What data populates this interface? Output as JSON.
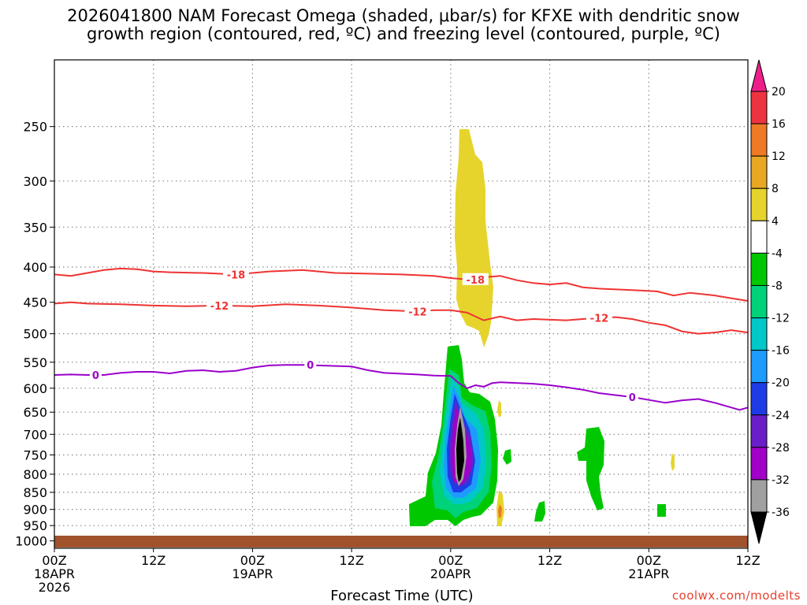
{
  "chart_data": {
    "type": "heatmap",
    "title_line1": "2026041800 NAM Forecast Omega (shaded, μbar/s) for KFXE with dendritic snow",
    "title_line2": "growth region (contoured, red, ºC) and freezing level (contoured, purple, ºC)",
    "xlabel": "Forecast Time (UTC)",
    "ylabel": "",
    "credit": "coolwx.com/modelts",
    "x_hours_range": [
      0,
      84
    ],
    "y_pressure_range": [
      200,
      1025
    ],
    "y_ticks": [
      250,
      300,
      350,
      400,
      450,
      500,
      550,
      600,
      650,
      700,
      750,
      800,
      850,
      900,
      950,
      1000
    ],
    "x_ticks": [
      {
        "hour": 0,
        "label": "00Z",
        "sub1": "18APR",
        "sub2": "2026"
      },
      {
        "hour": 12,
        "label": "12Z",
        "sub1": "",
        "sub2": ""
      },
      {
        "hour": 24,
        "label": "00Z",
        "sub1": "19APR",
        "sub2": ""
      },
      {
        "hour": 36,
        "label": "12Z",
        "sub1": "",
        "sub2": ""
      },
      {
        "hour": 48,
        "label": "00Z",
        "sub1": "20APR",
        "sub2": ""
      },
      {
        "hour": 60,
        "label": "12Z",
        "sub1": "",
        "sub2": ""
      },
      {
        "hour": 72,
        "label": "00Z",
        "sub1": "21APR",
        "sub2": ""
      },
      {
        "hour": 84,
        "label": "12Z",
        "sub1": "",
        "sub2": ""
      }
    ],
    "colorbar": {
      "levels": [
        "20",
        "16",
        "12",
        "8",
        "4",
        "-4",
        "-8",
        "-12",
        "-16",
        "-20",
        "-24",
        "-28",
        "-32",
        "-36"
      ],
      "colors": [
        "#ee1f8a",
        "#ee3340",
        "#ee7a25",
        "#e8a824",
        "#e6d42c",
        "#ffffff",
        "#00c800",
        "#00d27a",
        "#00c8c8",
        "#1e9bff",
        "#1e3ce6",
        "#6a1ec8",
        "#a000c8",
        "#a0a0a0",
        "#000000"
      ]
    },
    "contours": [
      {
        "name": "-18",
        "color": "#ee3333",
        "points": [
          [
            0,
            410
          ],
          [
            2,
            412
          ],
          [
            4,
            408
          ],
          [
            6,
            404
          ],
          [
            8,
            402
          ],
          [
            10,
            403
          ],
          [
            12,
            406
          ],
          [
            14,
            407
          ],
          [
            18,
            408
          ],
          [
            22,
            410
          ],
          [
            26,
            406
          ],
          [
            30,
            404
          ],
          [
            34,
            408
          ],
          [
            38,
            409
          ],
          [
            42,
            410
          ],
          [
            46,
            412
          ],
          [
            48,
            415
          ],
          [
            50,
            417
          ],
          [
            52,
            414
          ],
          [
            54,
            412
          ],
          [
            56,
            418
          ],
          [
            58,
            422
          ],
          [
            60,
            424
          ],
          [
            62,
            422
          ],
          [
            64,
            428
          ],
          [
            66,
            430
          ],
          [
            70,
            432
          ],
          [
            73,
            434
          ],
          [
            75,
            440
          ],
          [
            77,
            436
          ],
          [
            80,
            440
          ],
          [
            82,
            444
          ],
          [
            84,
            448
          ]
        ],
        "labels": [
          [
            22,
            410
          ],
          [
            51,
            417
          ]
        ]
      },
      {
        "name": "-12",
        "color": "#ee3333",
        "points": [
          [
            0,
            452
          ],
          [
            2,
            450
          ],
          [
            4,
            452
          ],
          [
            8,
            453
          ],
          [
            12,
            455
          ],
          [
            16,
            456
          ],
          [
            20,
            455
          ],
          [
            24,
            456
          ],
          [
            28,
            453
          ],
          [
            32,
            455
          ],
          [
            36,
            458
          ],
          [
            40,
            462
          ],
          [
            44,
            464
          ],
          [
            46,
            462
          ],
          [
            48,
            462
          ],
          [
            50,
            466
          ],
          [
            52,
            478
          ],
          [
            54,
            472
          ],
          [
            56,
            478
          ],
          [
            58,
            476
          ],
          [
            62,
            478
          ],
          [
            66,
            474
          ],
          [
            68,
            473
          ],
          [
            70,
            476
          ],
          [
            72,
            482
          ],
          [
            74,
            486
          ],
          [
            76,
            496
          ],
          [
            78,
            500
          ],
          [
            80,
            498
          ],
          [
            82,
            494
          ],
          [
            84,
            498
          ]
        ],
        "labels": [
          [
            20,
            455
          ],
          [
            44,
            464
          ],
          [
            66,
            474
          ]
        ]
      },
      {
        "name": "0",
        "color": "#9a00cc",
        "points": [
          [
            0,
            574
          ],
          [
            2,
            573
          ],
          [
            4,
            574
          ],
          [
            6,
            574
          ],
          [
            8,
            570
          ],
          [
            10,
            568
          ],
          [
            12,
            568
          ],
          [
            14,
            571
          ],
          [
            16,
            566
          ],
          [
            18,
            565
          ],
          [
            20,
            568
          ],
          [
            22,
            566
          ],
          [
            24,
            560
          ],
          [
            26,
            556
          ],
          [
            28,
            555
          ],
          [
            30,
            555
          ],
          [
            32,
            556
          ],
          [
            36,
            558
          ],
          [
            38,
            565
          ],
          [
            40,
            570
          ],
          [
            44,
            573
          ],
          [
            46,
            575
          ],
          [
            48,
            576
          ],
          [
            49,
            590
          ],
          [
            50,
            600
          ],
          [
            51,
            594
          ],
          [
            52,
            597
          ],
          [
            53,
            590
          ],
          [
            54,
            588
          ],
          [
            58,
            591
          ],
          [
            60,
            594
          ],
          [
            62,
            598
          ],
          [
            64,
            603
          ],
          [
            66,
            610
          ],
          [
            68,
            614
          ],
          [
            70,
            618
          ],
          [
            72,
            624
          ],
          [
            74,
            630
          ],
          [
            76,
            625
          ],
          [
            78,
            622
          ],
          [
            80,
            630
          ],
          [
            82,
            640
          ],
          [
            83,
            645
          ],
          [
            84,
            640
          ]
        ],
        "labels": [
          [
            5,
            574
          ],
          [
            31,
            555
          ],
          [
            70,
            618
          ]
        ]
      }
    ]
  }
}
